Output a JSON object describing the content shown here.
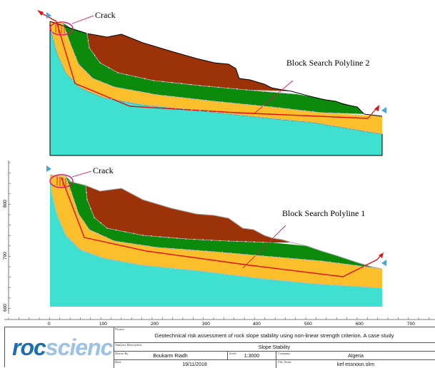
{
  "labels": {
    "crack_top": "Crack",
    "polyline_top": "Block Search Polyline 2",
    "crack_bottom": "Crack",
    "polyline_bottom": "Block Search Polyline 1"
  },
  "axes": {
    "x_ticks": [
      "0",
      "100",
      "200",
      "300",
      "400",
      "500",
      "600",
      "700"
    ],
    "y_ticks": [
      "800",
      "700",
      "600"
    ]
  },
  "title_block": {
    "logo": "rocscience",
    "project_caption": "Project",
    "project": "Geotechnical risk assessment of rock slope stability using non-linear strength criterion.  A case study",
    "analysis_caption": "Analysis Description",
    "analysis": "Slope Stability",
    "drawn_caption": "Drawn By",
    "drawn_by": "Boukarm Riadh",
    "scale_caption": "Scale",
    "scale": "1:3000",
    "company_caption": "Company",
    "company": "Algeria",
    "date_caption": "Date",
    "date": "19/11/2018",
    "file_caption": "File Name",
    "file_name": "kef essnoun.slim"
  },
  "colors": {
    "bedrock": "#40e0d0",
    "weathered_layer": "#fbbf2c",
    "green_layer": "#0b8a0b",
    "brown_layer": "#9b3208",
    "polyline": "#e01010",
    "crack_marker": "#e8106a",
    "logo_blue": "#1b6fb0"
  }
}
